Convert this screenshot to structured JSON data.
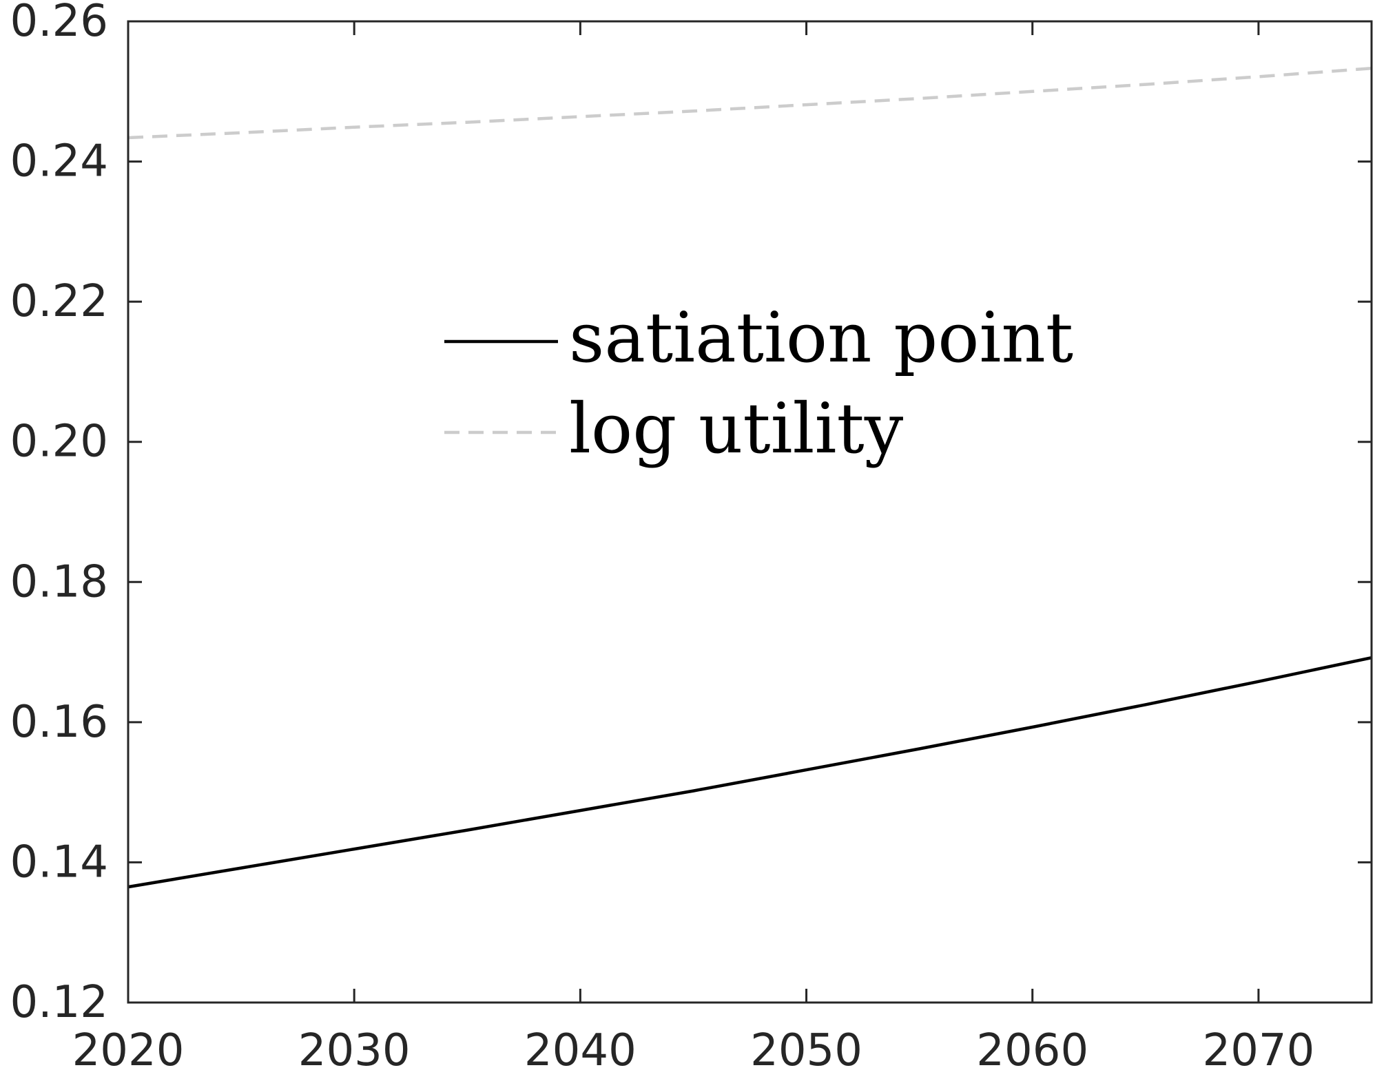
{
  "chart_data": {
    "type": "line",
    "title": "",
    "xlabel": "",
    "ylabel": "",
    "xlim": [
      2020,
      2075
    ],
    "ylim": [
      0.12,
      0.26
    ],
    "xticks": [
      2020,
      2030,
      2040,
      2050,
      2060,
      2070
    ],
    "xtick_labels": [
      "2020",
      "2030",
      "2040",
      "2050",
      "2060",
      "2070"
    ],
    "yticks": [
      0.12,
      0.14,
      0.16,
      0.18,
      0.2,
      0.22,
      0.24,
      0.26
    ],
    "ytick_labels": [
      "0.12",
      "0.14",
      "0.16",
      "0.18",
      "0.20",
      "0.22",
      "0.24",
      "0.26"
    ],
    "grid": false,
    "legend_position": "center",
    "x": [
      2020,
      2025,
      2030,
      2035,
      2040,
      2045,
      2050,
      2055,
      2060,
      2065,
      2070,
      2075
    ],
    "series": [
      {
        "name": "satiation point",
        "color": "#000000",
        "style": "solid",
        "values": [
          0.1365,
          0.1392,
          0.1419,
          0.1446,
          0.1474,
          0.1502,
          0.1532,
          0.1562,
          0.1593,
          0.1625,
          0.1658,
          0.1692
        ]
      },
      {
        "name": "log utility",
        "color": "#cccccc",
        "style": "dashed",
        "values": [
          0.2434,
          0.2441,
          0.2449,
          0.2456,
          0.2464,
          0.2472,
          0.2481,
          0.249,
          0.25,
          0.251,
          0.2521,
          0.2533
        ]
      }
    ]
  }
}
